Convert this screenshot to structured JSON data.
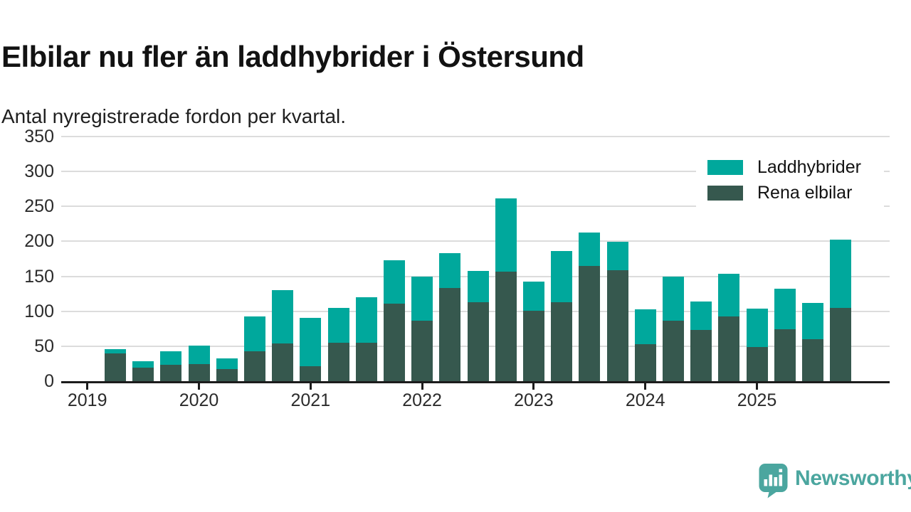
{
  "title": "Elbilar nu fler än laddhybrider i Östersund",
  "subtitle": "Antal nyregistrerade fordon per kvartal.",
  "legend": {
    "items": [
      {
        "label": "Laddhybrider",
        "color": "#00a89c"
      },
      {
        "label": "Rena elbilar",
        "color": "#36584e"
      }
    ]
  },
  "footer": {
    "brand": "Newsworthy",
    "brand_color": "#4ba69f",
    "logo_icon": "speech-bubble-bar-chart-icon"
  },
  "chart_data": {
    "type": "bar",
    "stacked": true,
    "title": "Elbilar nu fler än laddhybrider i Östersund",
    "subtitle": "Antal nyregistrerade fordon per kvartal.",
    "xlabel": "",
    "ylabel": "",
    "ylim": [
      0,
      350
    ],
    "y_ticks": [
      0,
      50,
      100,
      150,
      200,
      250,
      300,
      350
    ],
    "grid": true,
    "legend_position": "top-right",
    "x_tick_labels": [
      "2019",
      "2020",
      "2021",
      "2022",
      "2023",
      "2024",
      "2025"
    ],
    "categories": [
      "2019-Q2",
      "2019-Q3",
      "2019-Q4",
      "2020-Q1",
      "2020-Q2",
      "2020-Q3",
      "2020-Q4",
      "2021-Q1",
      "2021-Q2",
      "2021-Q3",
      "2021-Q4",
      "2022-Q1",
      "2022-Q2",
      "2022-Q3",
      "2022-Q4",
      "2023-Q1",
      "2023-Q2",
      "2023-Q3",
      "2023-Q4",
      "2024-Q1",
      "2024-Q2",
      "2024-Q3",
      "2024-Q4",
      "2025-Q1",
      "2025-Q2",
      "2025-Q3",
      "2025-Q4"
    ],
    "series": [
      {
        "name": "Rena elbilar",
        "color": "#36584e",
        "values": [
          40,
          19,
          23,
          24,
          17,
          43,
          54,
          21,
          55,
          55,
          111,
          87,
          133,
          113,
          157,
          101,
          113,
          165,
          159,
          53,
          87,
          73,
          93,
          49,
          74,
          60,
          105
        ]
      },
      {
        "name": "Laddhybrider",
        "color": "#00a89c",
        "values": [
          6,
          9,
          20,
          27,
          16,
          50,
          76,
          70,
          50,
          65,
          62,
          63,
          50,
          45,
          105,
          41,
          73,
          48,
          40,
          50,
          63,
          41,
          61,
          55,
          58,
          52,
          97
        ]
      }
    ],
    "totals": [
      46,
      28,
      43,
      51,
      33,
      93,
      130,
      91,
      105,
      120,
      173,
      150,
      183,
      158,
      262,
      142,
      186,
      213,
      199,
      103,
      150,
      114,
      154,
      104,
      132,
      112,
      202
    ]
  }
}
